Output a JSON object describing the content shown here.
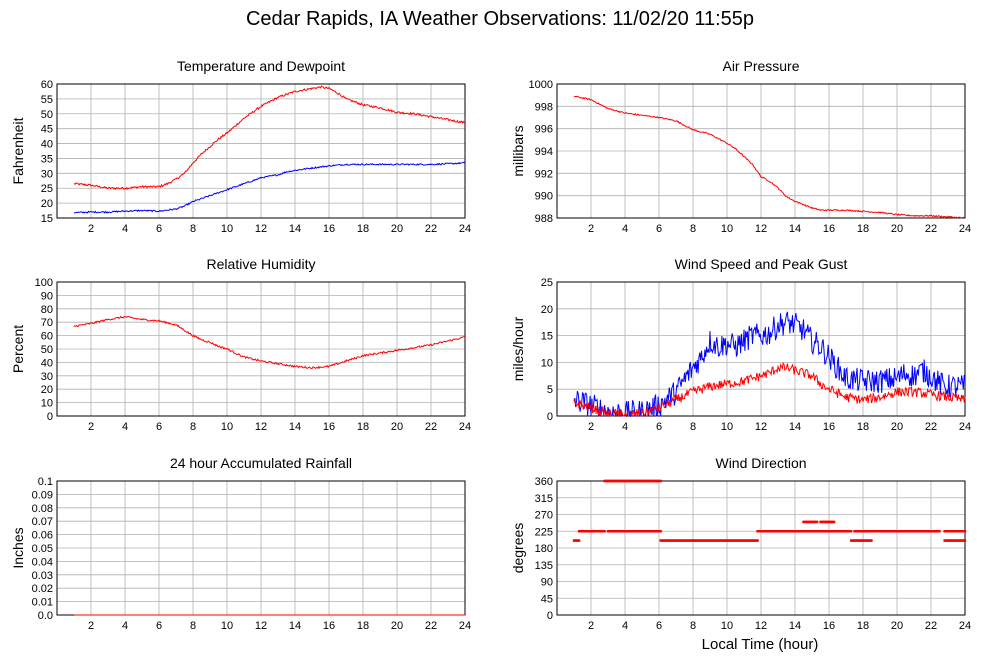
{
  "page": {
    "title": "Cedar Rapids, IA Weather Observations: 11/02/20 11:55p",
    "xaxis_label": "Local Time (hour)"
  },
  "colors": {
    "red": "#ff0000",
    "blue": "#0000ff",
    "grid": "#b0b0b0"
  },
  "chart_data": [
    {
      "id": "temp",
      "type": "line",
      "title": "Temperature and Dewpoint",
      "ylabel": "Fahrenheit",
      "xlim": [
        0,
        24
      ],
      "ylim": [
        15,
        60
      ],
      "xticks": [
        2,
        4,
        6,
        8,
        10,
        12,
        14,
        16,
        18,
        20,
        22,
        24
      ],
      "yticks": [
        15,
        20,
        25,
        30,
        35,
        40,
        45,
        50,
        55,
        60
      ],
      "grid": true,
      "series": [
        {
          "color": "#ff0000",
          "noise": 0.35,
          "x": [
            1,
            2,
            3,
            4,
            5,
            6,
            6.5,
            7,
            7.5,
            8,
            8.5,
            9,
            9.5,
            10,
            10.5,
            11,
            11.5,
            12,
            12.5,
            13,
            13.5,
            14,
            14.5,
            15,
            15.5,
            16,
            16.5,
            17,
            17.5,
            18,
            19,
            20,
            21,
            22,
            23,
            24
          ],
          "y": [
            26.5,
            26,
            25,
            25,
            25.5,
            25.5,
            26.5,
            28,
            30,
            33.5,
            36.5,
            39,
            41.5,
            43.5,
            46,
            48.5,
            50.5,
            52.5,
            54,
            55.5,
            56.5,
            57.5,
            58,
            58.5,
            59,
            58.5,
            57,
            55,
            54,
            53,
            52,
            50.5,
            50,
            49,
            48,
            47
          ]
        },
        {
          "color": "#0000ff",
          "noise": 0.25,
          "x": [
            1,
            2,
            3,
            4,
            5,
            6,
            7,
            7.5,
            8,
            8.5,
            9,
            9.5,
            10,
            10.5,
            11,
            11.5,
            12,
            12.5,
            13,
            13.5,
            14,
            15,
            16,
            17,
            18,
            19,
            20,
            21,
            22,
            23,
            24
          ],
          "y": [
            16.8,
            17,
            17,
            17.3,
            17.5,
            17.3,
            18,
            19,
            20.5,
            21.5,
            22.5,
            23.5,
            24.5,
            25.5,
            26.5,
            27.5,
            28.5,
            29,
            29.5,
            30.5,
            31,
            31.8,
            32.5,
            33,
            33,
            33,
            33,
            33,
            33,
            33.2,
            33.5
          ]
        }
      ]
    },
    {
      "id": "pressure",
      "type": "line",
      "title": "Air Pressure",
      "ylabel": "millibars",
      "xlim": [
        0,
        24
      ],
      "ylim": [
        988,
        1000
      ],
      "xticks": [
        2,
        4,
        6,
        8,
        10,
        12,
        14,
        16,
        18,
        20,
        22,
        24
      ],
      "yticks": [
        988,
        990,
        992,
        994,
        996,
        998,
        1000
      ],
      "grid": true,
      "series": [
        {
          "color": "#ff0000",
          "noise": 0.06,
          "x": [
            1,
            2,
            3,
            4,
            5,
            6,
            7,
            8,
            9,
            10,
            10.5,
            11,
            11.5,
            12,
            12.5,
            13,
            13.5,
            14,
            14.5,
            15,
            15.5,
            16,
            17,
            18,
            19,
            20,
            21,
            22,
            23,
            24
          ],
          "y": [
            998.9,
            998.6,
            997.8,
            997.4,
            997.2,
            997,
            996.7,
            995.9,
            995.5,
            994.7,
            994.2,
            993.5,
            992.8,
            991.7,
            991.3,
            990.7,
            989.9,
            989.5,
            989.2,
            988.9,
            988.7,
            988.7,
            988.7,
            988.6,
            988.5,
            988.3,
            988.2,
            988.2,
            988.1,
            988
          ]
        }
      ]
    },
    {
      "id": "humidity",
      "type": "line",
      "title": "Relative Humidity",
      "ylabel": "Percent",
      "xlim": [
        0,
        24
      ],
      "ylim": [
        0,
        100
      ],
      "xticks": [
        2,
        4,
        6,
        8,
        10,
        12,
        14,
        16,
        18,
        20,
        22,
        24
      ],
      "yticks": [
        0,
        10,
        20,
        30,
        40,
        50,
        60,
        70,
        80,
        90,
        100
      ],
      "grid": true,
      "series": [
        {
          "color": "#ff0000",
          "noise": 0.7,
          "x": [
            1,
            2,
            3,
            4,
            4.5,
            5,
            6,
            7,
            7.5,
            8,
            8.5,
            9,
            9.5,
            10,
            11,
            12,
            13,
            14,
            15,
            16,
            17,
            18,
            19,
            20,
            21,
            22,
            23,
            24
          ],
          "y": [
            67,
            69,
            72,
            74,
            73,
            72,
            71,
            68,
            64,
            60,
            57,
            55,
            52,
            50,
            44,
            41,
            39,
            37,
            36,
            37,
            41,
            45,
            47,
            49,
            51,
            53,
            56,
            59
          ]
        }
      ]
    },
    {
      "id": "wind",
      "type": "line",
      "title": "Wind Speed and Peak Gust",
      "ylabel": "miles/hour",
      "xlim": [
        0,
        24
      ],
      "ylim": [
        0,
        25
      ],
      "xticks": [
        2,
        4,
        6,
        8,
        10,
        12,
        14,
        16,
        18,
        20,
        22,
        24
      ],
      "yticks": [
        0,
        5,
        10,
        15,
        20,
        25
      ],
      "grid": true,
      "series": [
        {
          "color": "#0000ff",
          "noise": 2.3,
          "x": [
            1,
            2,
            3,
            4,
            5,
            6,
            7,
            8,
            8.5,
            9,
            9.5,
            10,
            10.5,
            11,
            11.5,
            12,
            12.5,
            13,
            13.5,
            14,
            14.5,
            15,
            15.5,
            16,
            16.5,
            17,
            18,
            19,
            20,
            20.5,
            21,
            21.5,
            22,
            22.5,
            23,
            24
          ],
          "y": [
            3,
            2,
            0.8,
            0.5,
            0.8,
            2,
            4.5,
            9,
            11,
            14,
            13,
            13.5,
            13,
            14,
            15,
            15,
            15.5,
            17,
            17.5,
            17,
            16,
            14,
            13,
            11,
            9,
            7,
            6.5,
            6.5,
            7,
            8,
            7.5,
            8.5,
            7.5,
            6,
            5.5,
            5.5
          ]
        },
        {
          "color": "#ff0000",
          "noise": 0.9,
          "x": [
            1,
            2,
            3,
            4,
            5,
            6,
            7,
            8,
            9,
            10,
            11,
            12,
            12.5,
            13,
            13.5,
            14,
            14.5,
            15,
            15.5,
            16,
            17,
            18,
            19,
            20,
            21,
            22,
            23,
            24
          ],
          "y": [
            2.5,
            1.5,
            0.5,
            0.3,
            0.5,
            1.5,
            3,
            4.5,
            5.5,
            6,
            6.5,
            7.5,
            8,
            9,
            9,
            8.5,
            8,
            7.5,
            6,
            5,
            3.5,
            3,
            3.5,
            4.5,
            4.5,
            4,
            3.5,
            3
          ]
        }
      ]
    },
    {
      "id": "rain",
      "type": "line",
      "title": "24 hour Accumulated Rainfall",
      "ylabel": "Inches",
      "xlim": [
        0,
        24
      ],
      "ylim": [
        0,
        0.1
      ],
      "xticks": [
        2,
        4,
        6,
        8,
        10,
        12,
        14,
        16,
        18,
        20,
        22,
        24
      ],
      "yticks": [
        "0.0",
        "0.01",
        "0.02",
        "0.03",
        "0.04",
        "0.05",
        "0.06",
        "0.07",
        "0.08",
        "0.09",
        "0.1"
      ],
      "grid": true,
      "series": [
        {
          "color": "#ff0000",
          "noise": 0,
          "x": [
            1,
            24
          ],
          "y": [
            0,
            0
          ]
        }
      ]
    },
    {
      "id": "direction",
      "type": "scatter",
      "title": "Wind Direction",
      "ylabel": "degrees",
      "xlim": [
        0,
        24
      ],
      "ylim": [
        0,
        360
      ],
      "xticks": [
        2,
        4,
        6,
        8,
        10,
        12,
        14,
        16,
        18,
        20,
        22,
        24
      ],
      "yticks": [
        0,
        45,
        90,
        135,
        180,
        225,
        270,
        315,
        360
      ],
      "grid": true,
      "series": [
        {
          "color": "#ff0000",
          "segments": [
            {
              "x": [
                1.0,
                1.3
              ],
              "y": 200
            },
            {
              "x": [
                1.3,
                2.8
              ],
              "y": 225
            },
            {
              "x": [
                2.8,
                6.1
              ],
              "y": 360
            },
            {
              "x": [
                3.0,
                6.1
              ],
              "y": 225
            },
            {
              "x": [
                6.1,
                11.8
              ],
              "y": 200
            },
            {
              "x": [
                11.8,
                17.3
              ],
              "y": 225
            },
            {
              "x": [
                14.5,
                15.3
              ],
              "y": 250
            },
            {
              "x": [
                15.5,
                16.3
              ],
              "y": 250
            },
            {
              "x": [
                17.3,
                18.5
              ],
              "y": 200
            },
            {
              "x": [
                17.5,
                22.5
              ],
              "y": 225
            },
            {
              "x": [
                22.8,
                24.0
              ],
              "y": 225
            },
            {
              "x": [
                22.8,
                24.0
              ],
              "y": 200
            }
          ]
        }
      ]
    }
  ]
}
